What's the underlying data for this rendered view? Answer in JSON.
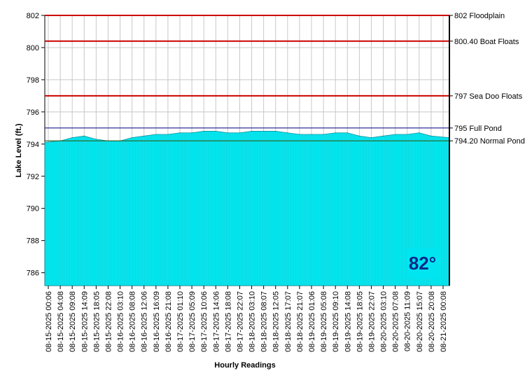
{
  "chart_data": {
    "type": "area",
    "xlabel": "Hourly Readings",
    "ylabel": "Lake Level (ft.)",
    "ylim": [
      785.2,
      802
    ],
    "yticks": [
      786,
      788,
      790,
      792,
      794,
      796,
      798,
      800,
      802
    ],
    "grid": true,
    "x_tick_labels": [
      "08-15-2025 00:06",
      "08-15-2025 04:08",
      "08-15-2025 09:08",
      "08-15-2025 14:09",
      "08-15-2025 18:05",
      "08-15-2025 22:08",
      "08-16-2025 03:10",
      "08-16-2025 08:08",
      "08-16-2025 12:06",
      "08-16-2025 16:09",
      "08-16-2025 21:08",
      "08-17-2025 01:10",
      "08-17-2025 05:09",
      "08-17-2025 10:06",
      "08-17-2025 14:06",
      "08-17-2025 18:08",
      "08-17-2025 22:07",
      "08-18-2025 03:10",
      "08-18-2025 08:07",
      "08-18-2025 12:05",
      "08-18-2025 17:07",
      "08-18-2025 21:07",
      "08-19-2025 01:06",
      "08-19-2025 05:08",
      "08-19-2025 09:10",
      "08-19-2025 14:08",
      "08-19-2025 18:05",
      "08-19-2025 22:07",
      "08-20-2025 03:10",
      "08-20-2025 07:08",
      "08-20-2025 11:09",
      "08-20-2025 15:07",
      "08-20-2025 20:08",
      "08-21-2025 00:08"
    ],
    "series": [
      {
        "values": [
          794.1,
          794.2,
          794.4,
          794.5,
          794.3,
          794.2,
          794.2,
          794.4,
          794.5,
          794.6,
          794.6,
          794.7,
          794.7,
          794.8,
          794.8,
          794.7,
          794.7,
          794.8,
          794.8,
          794.8,
          794.7,
          794.6,
          794.6,
          794.6,
          794.7,
          794.7,
          794.5,
          794.4,
          794.5,
          794.6,
          794.6,
          794.7,
          794.5,
          794.4
        ],
        "color": "#00e8f0"
      }
    ],
    "reference_lines": [
      {
        "value": 802,
        "label": "802 Floodplain",
        "color": "#cc0000"
      },
      {
        "value": 800.4,
        "label": "800.40 Boat Floats",
        "color": "#cc0000"
      },
      {
        "value": 797,
        "label": "797 Sea Doo Floats",
        "color": "#cc0000"
      },
      {
        "value": 795,
        "label": "795 Full Pond",
        "color": "#1a1a8c"
      },
      {
        "value": 794.2,
        "label": "794.20 Normal Pond",
        "color": "#2d6a2d"
      }
    ]
  },
  "temperature_badge": {
    "text": "82°",
    "bg": "#00e5f0",
    "color": "#0a2a8c"
  }
}
